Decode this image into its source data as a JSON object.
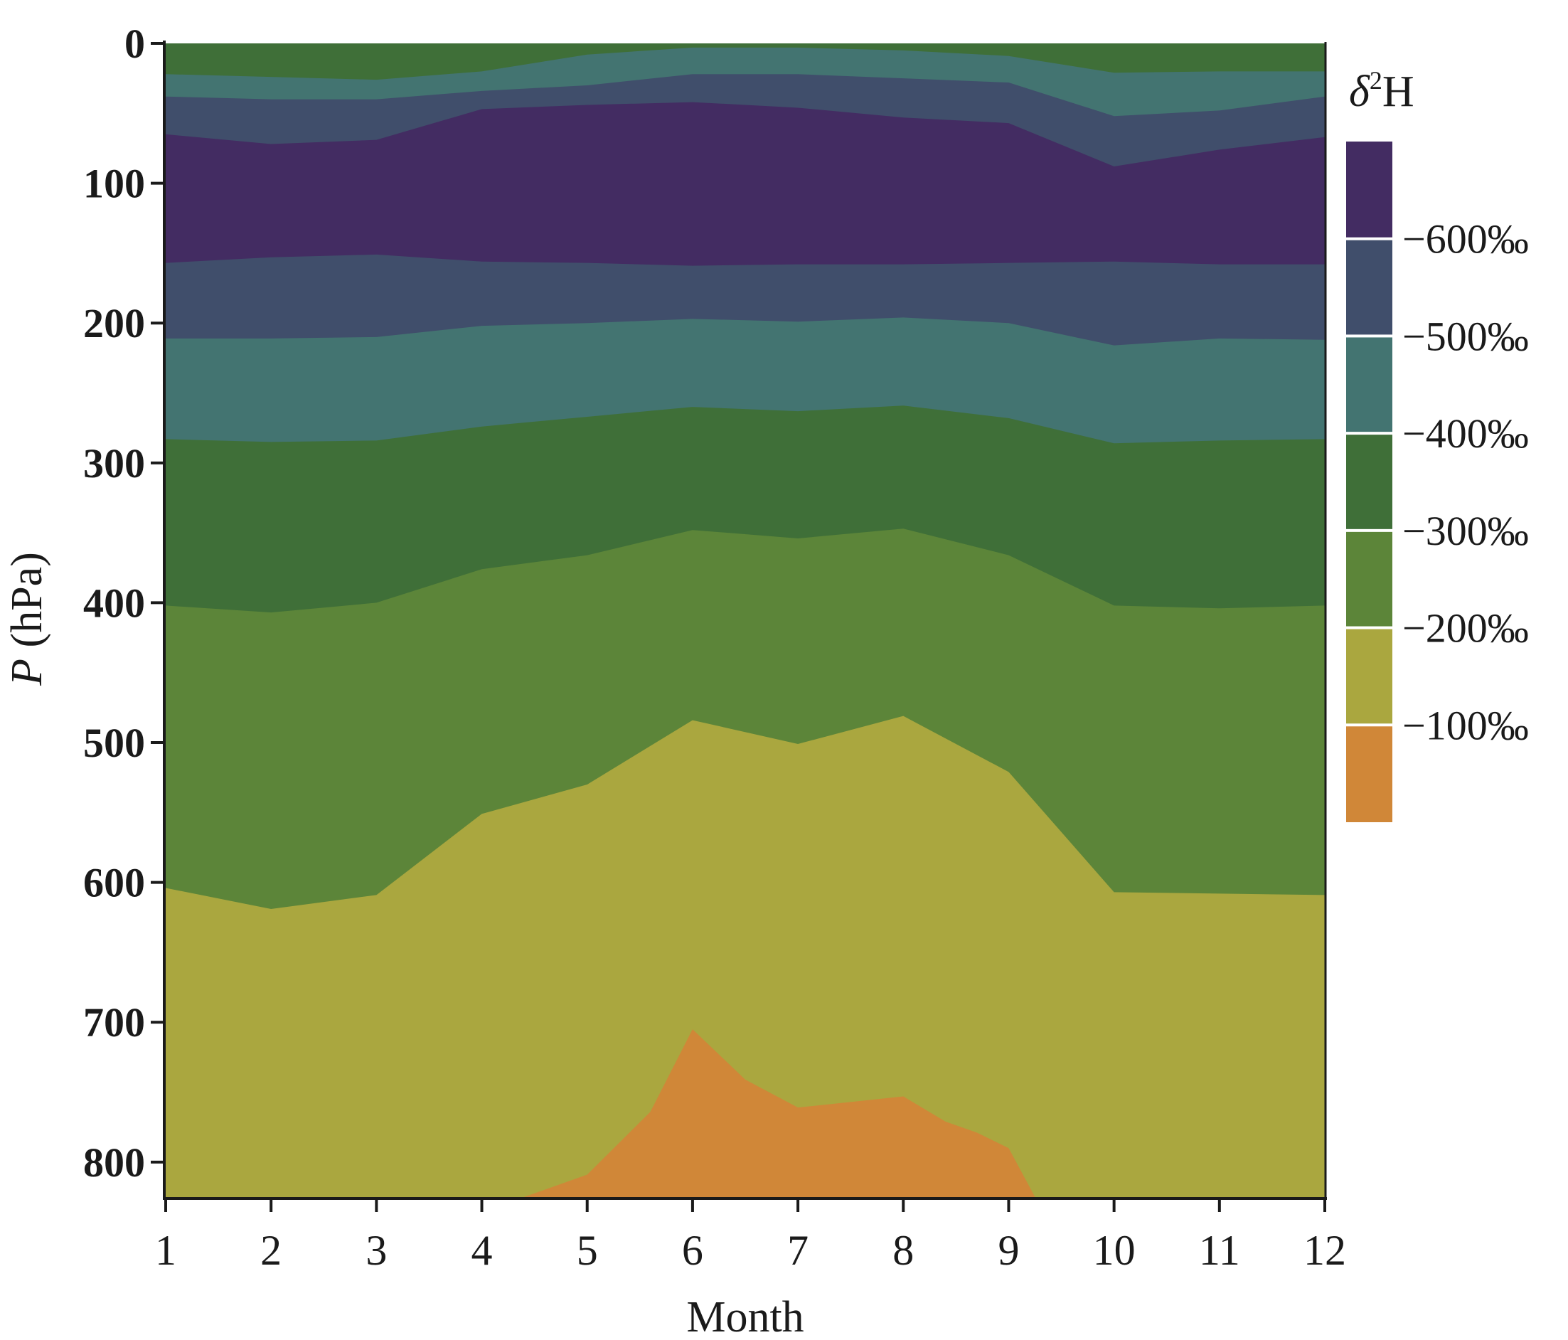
{
  "chart_data": {
    "type": "contour",
    "xlabel": "Month",
    "ylabel_italic": "P",
    "ylabel_rest": " (hPa)",
    "x_ticks": [
      "1",
      "2",
      "3",
      "4",
      "5",
      "6",
      "7",
      "8",
      "9",
      "10",
      "11",
      "12"
    ],
    "y_ticks": [
      "0",
      "100",
      "200",
      "300",
      "400",
      "500",
      "600",
      "700",
      "800"
    ],
    "xlim": [
      1,
      12
    ],
    "ylim": [
      0,
      825
    ],
    "y_inverted": true,
    "colorbar": {
      "title_symbol": "δ",
      "title_sup": "2",
      "title_rest": "H",
      "labels": [
        "−600‰",
        "−500‰",
        "−400‰",
        "−300‰",
        "−200‰",
        "−100‰"
      ],
      "colors": [
        "#432c62",
        "#404e6b",
        "#437471",
        "#3f6f38",
        "#5c8539",
        "#aaa73f",
        "#d08738"
      ]
    },
    "months": [
      1,
      2,
      3,
      4,
      5,
      6,
      7,
      8,
      9,
      10,
      11,
      12
    ],
    "contours": [
      {
        "level": "-600‰",
        "pressure_hPa": [
          65,
          72,
          69,
          47,
          44,
          42,
          46,
          53,
          57,
          88,
          76,
          67
        ]
      },
      {
        "level": "-500‰",
        "pressure_hPa": [
          157,
          153,
          151,
          156,
          157,
          159,
          158,
          158,
          157,
          156,
          158,
          158
        ]
      },
      {
        "level": "-400‰",
        "pressure_hPa": [
          211,
          211,
          210,
          202,
          200,
          197,
          199,
          196,
          200,
          216,
          211,
          212
        ]
      },
      {
        "level": "-300‰",
        "pressure_hPa": [
          283,
          285,
          284,
          274,
          267,
          260,
          263,
          259,
          268,
          286,
          284,
          283
        ]
      },
      {
        "level": "-200‰",
        "pressure_hPa": [
          402,
          407,
          400,
          376,
          366,
          348,
          354,
          347,
          366,
          402,
          404,
          402
        ]
      },
      {
        "level": "-100‰",
        "pressure_hPa": [
          604,
          619,
          609,
          551,
          530,
          484,
          501,
          481,
          521,
          607,
          608,
          609
        ]
      },
      {
        "level": "-100‰ (upper, near top)",
        "pressure_hPa": [
          22,
          24,
          26,
          20,
          8,
          3,
          3,
          5,
          9,
          21,
          20,
          20
        ]
      }
    ],
    "enriched_region": {
      "level": "> -100‰",
      "months": [
        4.4,
        5,
        5.6,
        6,
        6.5,
        7,
        8,
        8.4,
        8.7,
        9,
        9.25
      ],
      "pressure_hPa": [
        825,
        809,
        764,
        705,
        741,
        761,
        753,
        771,
        779,
        790,
        825
      ]
    }
  }
}
